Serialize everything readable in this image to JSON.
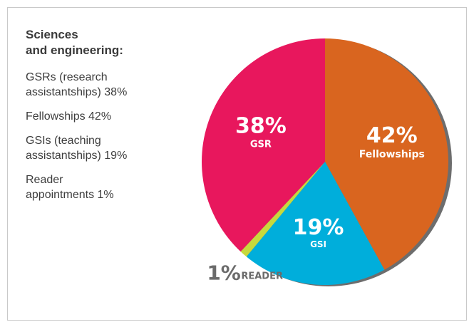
{
  "legend": {
    "heading_line1": "Sciences",
    "heading_line2": "and engineering:",
    "items": [
      {
        "line1": "GSRs (research",
        "line2": "assistantships) 38%"
      },
      {
        "line1": "Fellowships 42%",
        "line2": ""
      },
      {
        "line1": "GSIs (teaching",
        "line2": "assistantships) 19%"
      },
      {
        "line1": "Reader",
        "line2": "appointments 1%"
      }
    ]
  },
  "chart_data": {
    "type": "pie",
    "title": "",
    "slices": [
      {
        "label": "Fellowships",
        "value": 42,
        "display": "42%",
        "color": "#d9651f"
      },
      {
        "label": "GSI",
        "value": 19,
        "display": "19%",
        "color": "#00aedb"
      },
      {
        "label": "READER",
        "value": 1,
        "display": "1%",
        "color": "#c7d93d"
      },
      {
        "label": "GSR",
        "value": 38,
        "display": "38%",
        "color": "#e8175d"
      }
    ],
    "shadow_color": "#6d6d6d"
  }
}
